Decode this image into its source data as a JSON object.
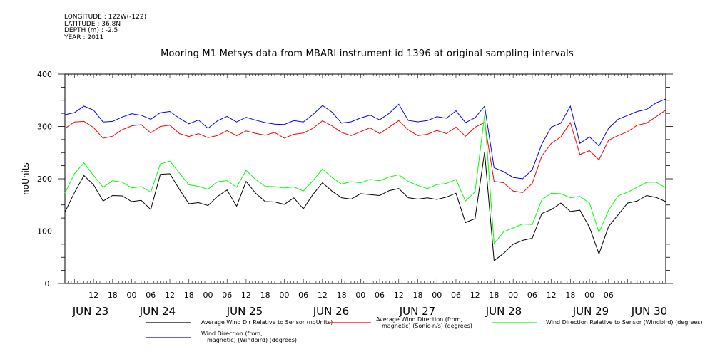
{
  "header": {
    "longitude": "LONGITUDE : 122W(-122)",
    "latitude": "LATITUDE : 36.8N",
    "depth": "DEPTH (m) : -2.5",
    "year": "YEAR : 2011"
  },
  "chart_data": {
    "type": "line",
    "title": "Mooring M1 Metsys data from MBARI instrument id 1396 at original sampling intervals",
    "ylabel": "noUnits",
    "xlabel": "",
    "ylim": [
      0,
      400
    ],
    "y_ticks": [
      "0.",
      "100",
      "200",
      "300",
      "400"
    ],
    "xlim_hours": [
      0,
      189
    ],
    "x_hour_ticks": [
      "12",
      "18",
      "00",
      "06",
      "12",
      "18",
      "00",
      "06",
      "12",
      "18",
      "00",
      "06",
      "12",
      "18",
      "00",
      "06",
      "12",
      "18",
      "00",
      "06",
      "12",
      "18",
      "00",
      "06",
      "12",
      "18",
      "00",
      "06"
    ],
    "x_day_ticks": [
      "JUN 23",
      "JUN 24",
      "JUN 25",
      "JUN 26",
      "JUN 27",
      "JUN 28",
      "JUN 29",
      "JUN 30"
    ],
    "grid": false,
    "legend_position": "bottom",
    "series": [
      {
        "name": "Average Wind Dir Relative to Sensor (noUnits)",
        "color": "#000000",
        "x": [
          0,
          3,
          6,
          9,
          12,
          15,
          18,
          21,
          24,
          27,
          30,
          33,
          36,
          39,
          42,
          45,
          48,
          51,
          54,
          57,
          60,
          63,
          66,
          69,
          72,
          75,
          78,
          81,
          84,
          87,
          90,
          93,
          96,
          99,
          102,
          105,
          108,
          111,
          114,
          117,
          120,
          123,
          126,
          129,
          132,
          135,
          138,
          141,
          144,
          147,
          150,
          153,
          156,
          159,
          162,
          165,
          168,
          171,
          174,
          177,
          180,
          183,
          186,
          189
        ],
        "values": [
          140,
          175,
          205,
          185,
          160,
          168,
          165,
          160,
          160,
          140,
          205,
          212,
          180,
          150,
          158,
          150,
          165,
          175,
          150,
          195,
          170,
          160,
          157,
          150,
          160,
          145,
          170,
          190,
          180,
          165,
          160,
          168,
          172,
          168,
          175,
          185,
          165,
          160,
          160,
          163,
          165,
          170,
          120,
          125,
          250,
          40,
          60,
          75,
          80,
          90,
          135,
          140,
          150,
          140,
          140,
          105,
          60,
          110,
          130,
          150,
          160,
          168,
          162,
          160
        ]
      },
      {
        "name": "Average Wind Direction (from, magnetic) (Sonic-n/s) (degrees)",
        "color": "#ff0000",
        "x": [
          0,
          3,
          6,
          9,
          12,
          15,
          18,
          21,
          24,
          27,
          30,
          33,
          36,
          39,
          42,
          45,
          48,
          51,
          54,
          57,
          60,
          63,
          66,
          69,
          72,
          75,
          78,
          81,
          84,
          87,
          90,
          93,
          96,
          99,
          102,
          105,
          108,
          111,
          114,
          117,
          120,
          123,
          126,
          129,
          132,
          135,
          138,
          141,
          144,
          147,
          150,
          153,
          156,
          159,
          162,
          165,
          168,
          171,
          174,
          177,
          180,
          183,
          186,
          189
        ],
        "values": [
          295,
          305,
          312,
          298,
          275,
          285,
          295,
          300,
          300,
          290,
          300,
          300,
          290,
          282,
          285,
          275,
          285,
          292,
          280,
          295,
          288,
          282,
          285,
          280,
          285,
          285,
          300,
          312,
          300,
          285,
          285,
          290,
          295,
          290,
          300,
          310,
          290,
          285,
          285,
          290,
          290,
          300,
          280,
          295,
          310,
          195,
          190,
          180,
          175,
          190,
          240,
          270,
          280,
          305,
          250,
          255,
          235,
          270,
          285,
          290,
          300,
          310,
          320,
          330
        ]
      },
      {
        "name": "Wind Direction Relative to Sensor (Windbird) (degrees)",
        "color": "#00ff00",
        "x": [
          0,
          3,
          6,
          9,
          12,
          15,
          18,
          21,
          24,
          27,
          30,
          33,
          36,
          39,
          42,
          45,
          48,
          51,
          54,
          57,
          60,
          63,
          66,
          69,
          72,
          75,
          78,
          81,
          84,
          87,
          90,
          93,
          96,
          99,
          102,
          105,
          108,
          111,
          114,
          117,
          120,
          123,
          126,
          129,
          132,
          135,
          138,
          141,
          144,
          147,
          150,
          153,
          156,
          159,
          162,
          165,
          168,
          171,
          174,
          177,
          180,
          183,
          186,
          189
        ],
        "values": [
          175,
          210,
          228,
          210,
          185,
          195,
          190,
          185,
          185,
          172,
          232,
          235,
          210,
          185,
          188,
          180,
          192,
          200,
          185,
          215,
          195,
          188,
          185,
          180,
          188,
          178,
          195,
          215,
          205,
          190,
          192,
          196,
          200,
          195,
          200,
          210,
          195,
          185,
          185,
          190,
          190,
          195,
          160,
          175,
          320,
          80,
          100,
          105,
          110,
          115,
          160,
          170,
          175,
          165,
          165,
          150,
          100,
          140,
          165,
          178,
          185,
          192,
          190,
          185
        ]
      },
      {
        "name": "Wind Direction (from, magnetic) (Windbird) (degrees)",
        "color": "#0000ff",
        "x": [
          0,
          3,
          6,
          9,
          12,
          15,
          18,
          21,
          24,
          27,
          30,
          33,
          36,
          39,
          42,
          45,
          48,
          51,
          54,
          57,
          60,
          63,
          66,
          69,
          72,
          75,
          78,
          81,
          84,
          87,
          90,
          93,
          96,
          99,
          102,
          105,
          108,
          111,
          114,
          117,
          120,
          123,
          126,
          129,
          132,
          135,
          138,
          141,
          144,
          147,
          150,
          153,
          156,
          159,
          162,
          165,
          168,
          171,
          174,
          177,
          180,
          183,
          186,
          189
        ],
        "values": [
          320,
          330,
          340,
          330,
          305,
          312,
          318,
          322,
          325,
          315,
          325,
          325,
          318,
          305,
          310,
          300,
          312,
          318,
          305,
          320,
          312,
          305,
          308,
          305,
          310,
          305,
          325,
          340,
          325,
          310,
          310,
          315,
          318,
          315,
          325,
          340,
          315,
          310,
          310,
          315,
          318,
          330,
          305,
          320,
          340,
          220,
          210,
          205,
          200,
          215,
          270,
          300,
          305,
          335,
          270,
          280,
          260,
          300,
          315,
          320,
          325,
          335,
          345,
          350
        ]
      }
    ]
  }
}
